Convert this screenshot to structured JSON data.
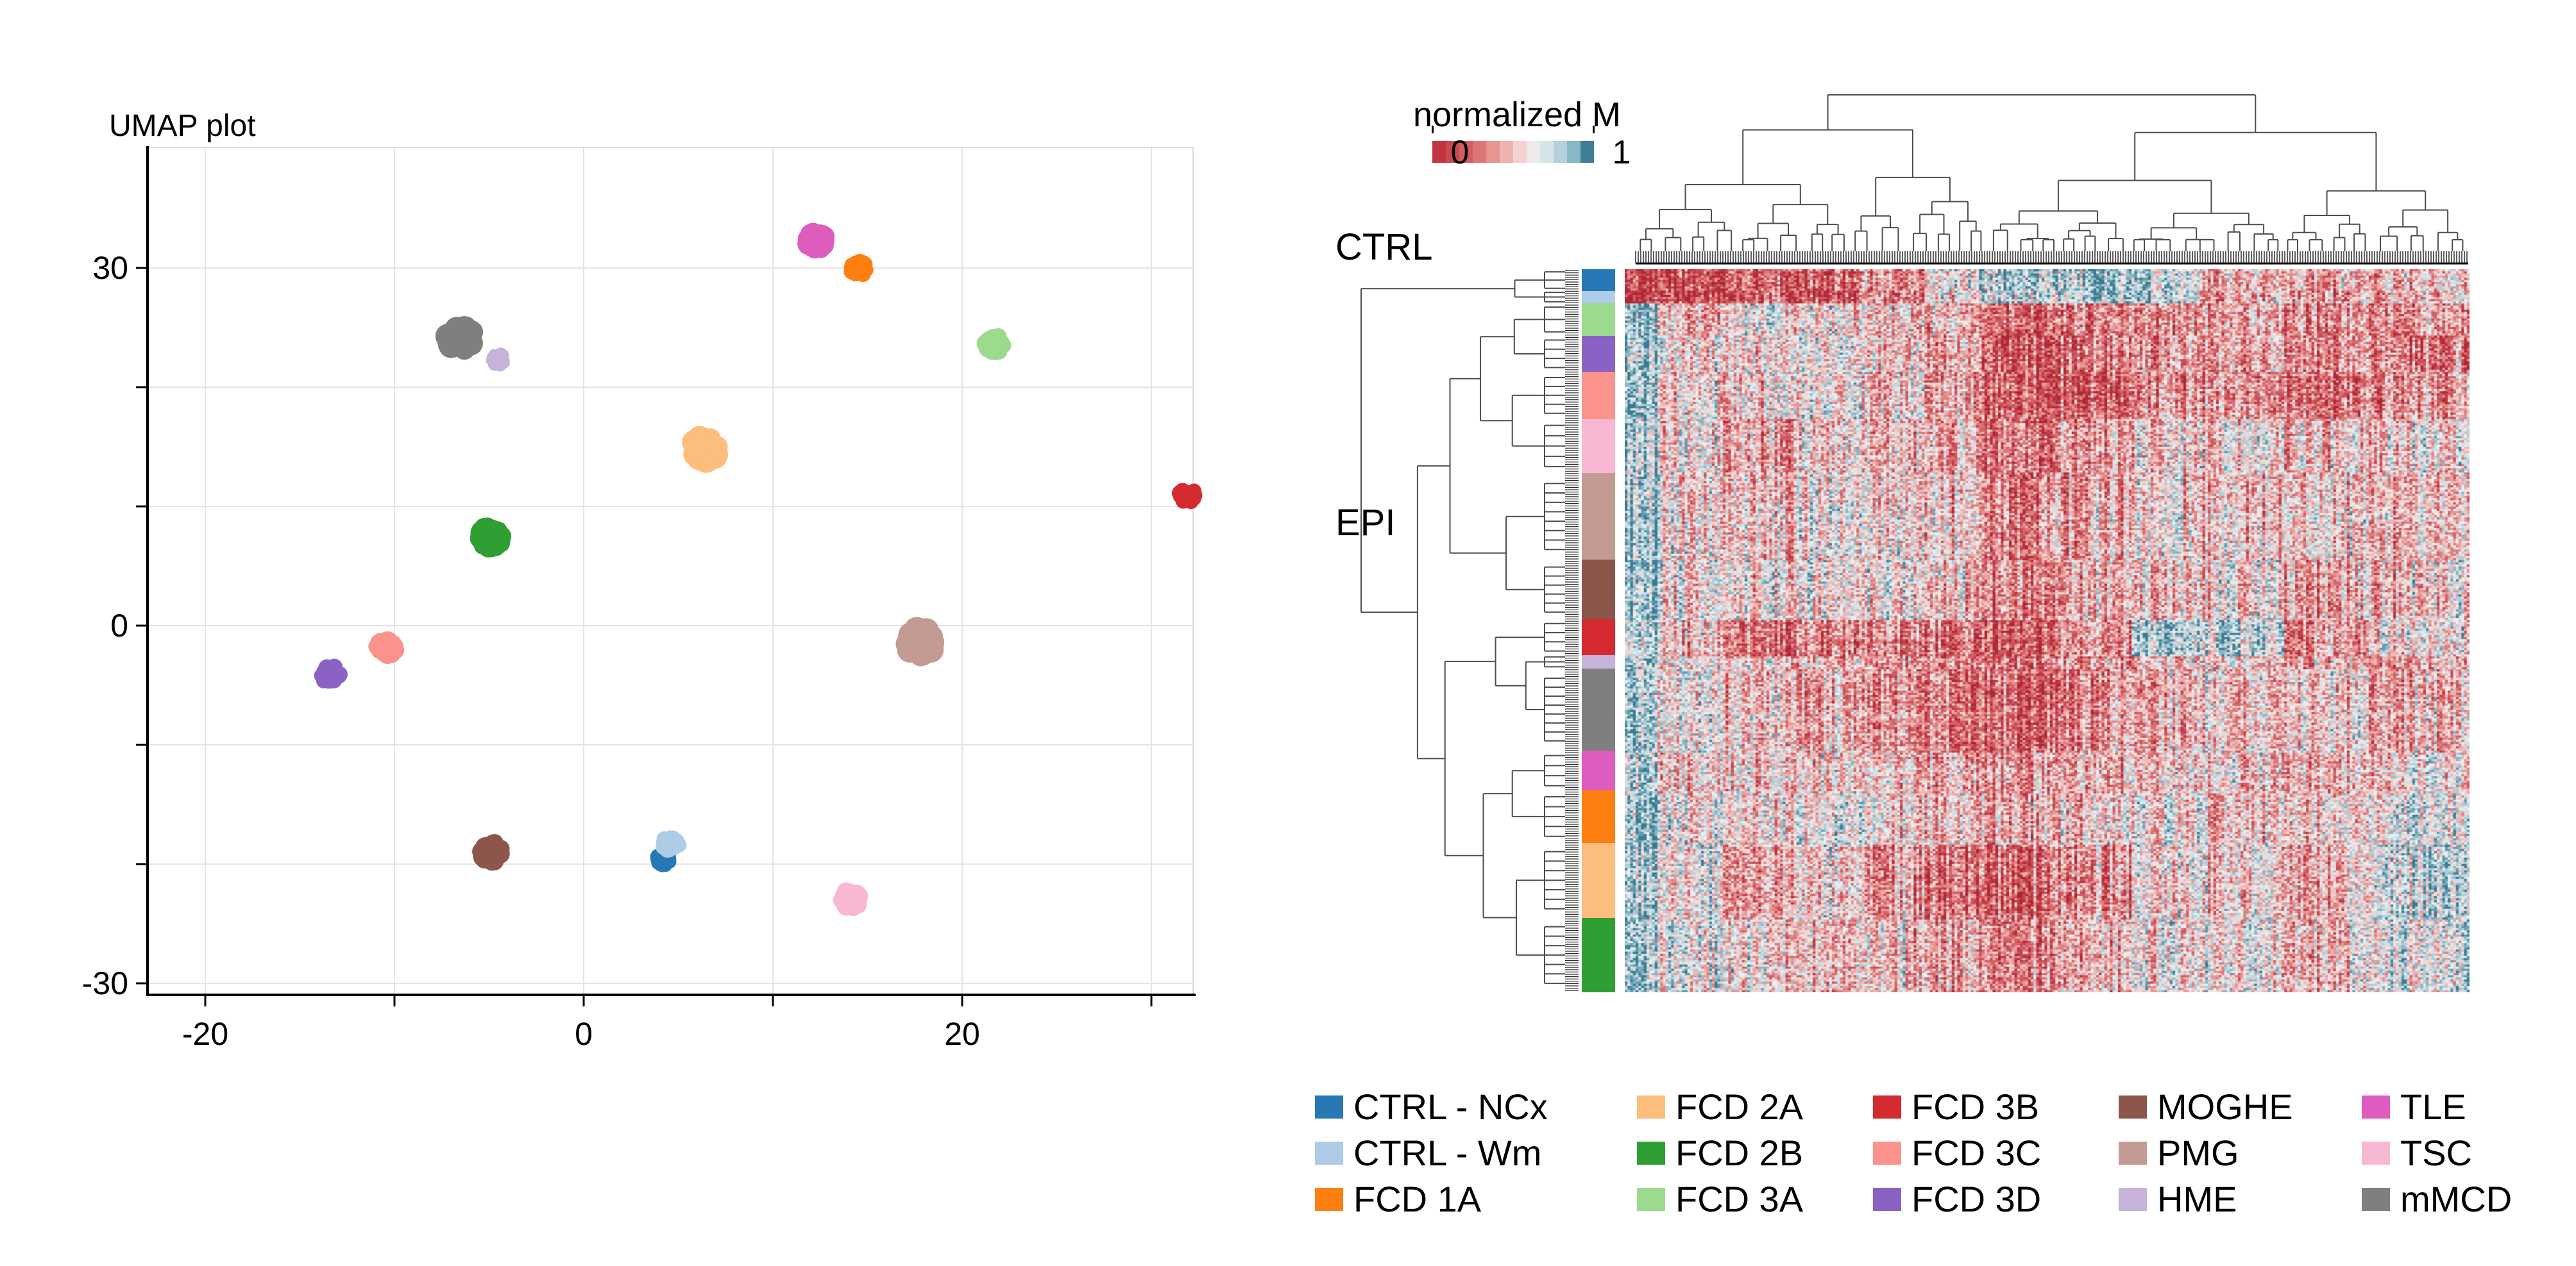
{
  "legend": {
    "columns": 5,
    "rows": 3,
    "entries": [
      {
        "label": "CTRL - NCx",
        "color": "#2878b5"
      },
      {
        "label": "CTRL - Wm",
        "color": "#aecbe8"
      },
      {
        "label": "FCD 1A",
        "color": "#fd7f10"
      },
      {
        "label": "FCD 2A",
        "color": "#fdbd7c"
      },
      {
        "label": "FCD 2B",
        "color": "#2f9e33"
      },
      {
        "label": "FCD 3A",
        "color": "#9cda8e"
      },
      {
        "label": "FCD 3B",
        "color": "#d42a30"
      },
      {
        "label": "FCD 3C",
        "color": "#fb938c"
      },
      {
        "label": "FCD 3D",
        "color": "#8a62c3"
      },
      {
        "label": "MOGHE",
        "color": "#8c564b"
      },
      {
        "label": "PMG",
        "color": "#c39b93"
      },
      {
        "label": "HME",
        "color": "#c7b2da"
      },
      {
        "label": "TLE",
        "color": "#de5cbd"
      },
      {
        "label": "TSC",
        "color": "#f8b7d2"
      },
      {
        "label": "mMCD",
        "color": "#7f7f7f"
      }
    ]
  },
  "chart_data": [
    {
      "type": "scatter",
      "title": "UMAP plot",
      "xlabel": "",
      "ylabel": "",
      "x_axis": {
        "range": [
          -23,
          32.2
        ],
        "ticks": [
          -20,
          -10,
          0,
          10,
          20,
          30
        ],
        "tick_labels": [
          "-20",
          "0",
          "20"
        ],
        "labeled_ticks": [
          -20,
          0,
          20
        ]
      },
      "y_axis": {
        "range": [
          -32,
          40.5
        ],
        "ticks": [
          30,
          20,
          10,
          0,
          -10,
          -20,
          -30
        ],
        "tick_labels": [
          "30",
          "0",
          "-30"
        ],
        "labeled_ticks": [
          30,
          0,
          -30
        ]
      },
      "grid": true,
      "clusters": [
        {
          "label": "mMCD",
          "color": "#7f7f7f",
          "x": -6.5,
          "y": 24.1,
          "r": 36
        },
        {
          "label": "HME",
          "color": "#c7b2da",
          "x": -4.5,
          "y": 22.3,
          "r": 19
        },
        {
          "label": "TLE",
          "color": "#de5cbd",
          "x": 12.3,
          "y": 32.3,
          "r": 28
        },
        {
          "label": "FCD 1A",
          "color": "#fd7f10",
          "x": 14.5,
          "y": 30.0,
          "r": 23
        },
        {
          "label": "FCD 3A",
          "color": "#9cda8e",
          "x": 21.7,
          "y": 23.6,
          "r": 25
        },
        {
          "label": "FCD 2A",
          "color": "#fdbd7c",
          "x": 6.4,
          "y": 14.8,
          "r": 38
        },
        {
          "label": "FCD 3B",
          "color": "#d42a30",
          "x": 31.9,
          "y": 11.0,
          "r": 23
        },
        {
          "label": "FCD 2B",
          "color": "#2f9e33",
          "x": -4.9,
          "y": 7.4,
          "r": 33
        },
        {
          "label": "FCD 3C",
          "color": "#fb938c",
          "x": -10.4,
          "y": -1.8,
          "r": 26
        },
        {
          "label": "FCD 3D",
          "color": "#8a62c3",
          "x": -13.4,
          "y": -4.1,
          "r": 25
        },
        {
          "label": "PMG",
          "color": "#c39b93",
          "x": 17.8,
          "y": -1.4,
          "r": 38
        },
        {
          "label": "MOGHE",
          "color": "#8c564b",
          "x": -4.9,
          "y": -19.0,
          "r": 29
        },
        {
          "label": "CTRL - NCx",
          "color": "#2878b5",
          "x": 4.2,
          "y": -19.6,
          "r": 20
        },
        {
          "label": "CTRL - Wm",
          "color": "#aecbe8",
          "x": 4.6,
          "y": -18.3,
          "r": 23
        },
        {
          "label": "TSC",
          "color": "#f8b7d2",
          "x": 14.1,
          "y": -23.0,
          "r": 27
        }
      ]
    },
    {
      "type": "heatmap",
      "row_label_top": "CTRL",
      "row_label_left": "EPI",
      "colorscale": {
        "title": "normalized M",
        "tick_labels": [
          "0",
          "1"
        ],
        "colors": [
          "#c23644",
          "#cc4850",
          "#d55d61",
          "#de7678",
          "#e79492",
          "#eeb3b1",
          "#f4d2cf",
          "#ecebea",
          "#d4e4e8",
          "#b2d1da",
          "#88b7c5",
          "#3f7e95"
        ]
      },
      "cell_palette": [
        "#ae2633",
        "#bc3442",
        "#c84a52",
        "#d35f63",
        "#dd7a7b",
        "#e79796",
        "#efb6b4",
        "#f2d6d3",
        "#e9eef0",
        "#cfe0e6",
        "#aecfd9",
        "#8ab6c4",
        "#5f9aae",
        "#3a7b92"
      ],
      "col_band_fractions": [
        0.04,
        0.075,
        0.085,
        0.08,
        0.075,
        0.065,
        0.09,
        0.09,
        0.08,
        0.1,
        0.1,
        0.12
      ],
      "row_groups": [
        {
          "label": "CTRL - NCx",
          "color": "#2878b5",
          "fraction": 0.03,
          "band_means": [
            0.12,
            0.15,
            0.22,
            0.18,
            0.35,
            0.6,
            0.75,
            0.78,
            0.7,
            0.45,
            0.42,
            0.47
          ]
        },
        {
          "label": "CTRL - Wm",
          "color": "#aecbe8",
          "fraction": 0.017,
          "band_means": [
            0.12,
            0.15,
            0.22,
            0.18,
            0.35,
            0.6,
            0.75,
            0.78,
            0.7,
            0.45,
            0.42,
            0.47
          ]
        },
        {
          "label": "FCD 3A",
          "color": "#9cda8e",
          "fraction": 0.045,
          "band_means": [
            0.8,
            0.52,
            0.62,
            0.5,
            0.48,
            0.45,
            0.22,
            0.3,
            0.35,
            0.4,
            0.3,
            0.36
          ]
        },
        {
          "label": "FCD 3D",
          "color": "#8a62c3",
          "fraction": 0.05,
          "band_means": [
            0.84,
            0.58,
            0.55,
            0.57,
            0.5,
            0.42,
            0.2,
            0.28,
            0.32,
            0.44,
            0.34,
            0.3
          ]
        },
        {
          "label": "FCD 3C",
          "color": "#fb938c",
          "fraction": 0.065,
          "band_means": [
            0.84,
            0.58,
            0.52,
            0.6,
            0.48,
            0.42,
            0.25,
            0.22,
            0.32,
            0.38,
            0.28,
            0.36
          ]
        },
        {
          "label": "TSC",
          "color": "#f8b7d2",
          "fraction": 0.075,
          "band_means": [
            0.78,
            0.54,
            0.42,
            0.52,
            0.48,
            0.46,
            0.3,
            0.42,
            0.5,
            0.54,
            0.47,
            0.52
          ]
        },
        {
          "label": "PMG",
          "color": "#c39b93",
          "fraction": 0.12,
          "band_means": [
            0.78,
            0.57,
            0.5,
            0.55,
            0.52,
            0.48,
            0.33,
            0.43,
            0.52,
            0.48,
            0.52,
            0.48
          ]
        },
        {
          "label": "MOGHE",
          "color": "#8c564b",
          "fraction": 0.082,
          "band_means": [
            0.8,
            0.61,
            0.55,
            0.59,
            0.55,
            0.5,
            0.35,
            0.45,
            0.5,
            0.54,
            0.46,
            0.5
          ]
        },
        {
          "label": "FCD 3B",
          "color": "#d42a30",
          "fraction": 0.05,
          "band_means": [
            0.74,
            0.5,
            0.3,
            0.28,
            0.32,
            0.28,
            0.22,
            0.33,
            0.76,
            0.72,
            0.38,
            0.55
          ]
        },
        {
          "label": "HME",
          "color": "#c7b2da",
          "fraction": 0.018,
          "band_means": [
            0.78,
            0.54,
            0.5,
            0.46,
            0.42,
            0.38,
            0.3,
            0.38,
            0.45,
            0.5,
            0.45,
            0.42
          ]
        },
        {
          "label": "mMCD",
          "color": "#7f7f7f",
          "fraction": 0.114,
          "band_means": [
            0.82,
            0.59,
            0.5,
            0.44,
            0.35,
            0.3,
            0.26,
            0.32,
            0.42,
            0.5,
            0.54,
            0.46
          ]
        },
        {
          "label": "TLE",
          "color": "#de5cbd",
          "fraction": 0.055,
          "band_means": [
            0.75,
            0.55,
            0.5,
            0.54,
            0.5,
            0.46,
            0.4,
            0.46,
            0.5,
            0.54,
            0.5,
            0.55
          ]
        },
        {
          "label": "FCD 1A",
          "color": "#fd7f10",
          "fraction": 0.072,
          "band_means": [
            0.78,
            0.6,
            0.55,
            0.6,
            0.55,
            0.5,
            0.45,
            0.52,
            0.55,
            0.5,
            0.55,
            0.6
          ]
        },
        {
          "label": "FCD 2A",
          "color": "#fdbd7c",
          "fraction": 0.104,
          "band_means": [
            0.82,
            0.59,
            0.45,
            0.52,
            0.4,
            0.3,
            0.26,
            0.36,
            0.5,
            0.55,
            0.45,
            0.68
          ]
        },
        {
          "label": "FCD 2B",
          "color": "#2f9e33",
          "fraction": 0.103,
          "band_means": [
            0.78,
            0.64,
            0.55,
            0.5,
            0.45,
            0.4,
            0.3,
            0.46,
            0.55,
            0.6,
            0.5,
            0.65
          ]
        }
      ]
    }
  ]
}
